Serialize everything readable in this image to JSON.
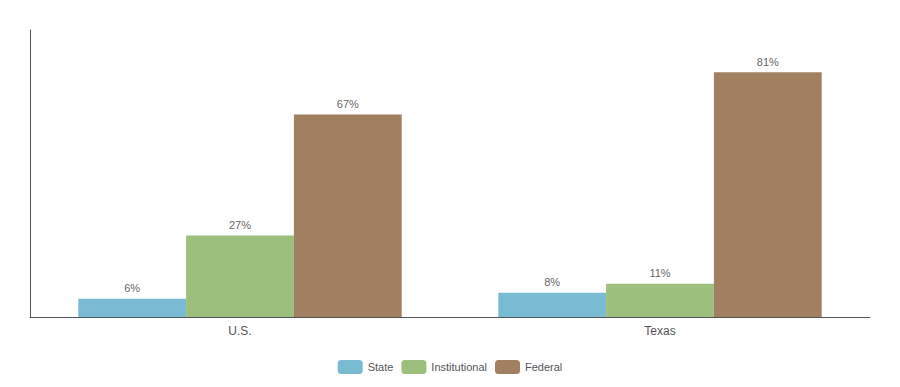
{
  "chart_data": {
    "type": "bar",
    "categories": [
      "U.S.",
      "Texas"
    ],
    "series": [
      {
        "name": "State",
        "color": "#7abbd4",
        "values": [
          6,
          8
        ],
        "value_labels": [
          "6%",
          "8%"
        ]
      },
      {
        "name": "Institutional",
        "color": "#9dbf7e",
        "values": [
          27,
          11
        ],
        "value_labels": [
          "27%",
          "11%"
        ]
      },
      {
        "name": "Federal",
        "color": "#a08060",
        "values": [
          67,
          81
        ],
        "value_labels": [
          "67%",
          "81%"
        ]
      }
    ],
    "ylim": [
      0,
      95
    ],
    "grid": false,
    "legend": "bottom",
    "data_labels": true,
    "tick_labels": "x"
  }
}
